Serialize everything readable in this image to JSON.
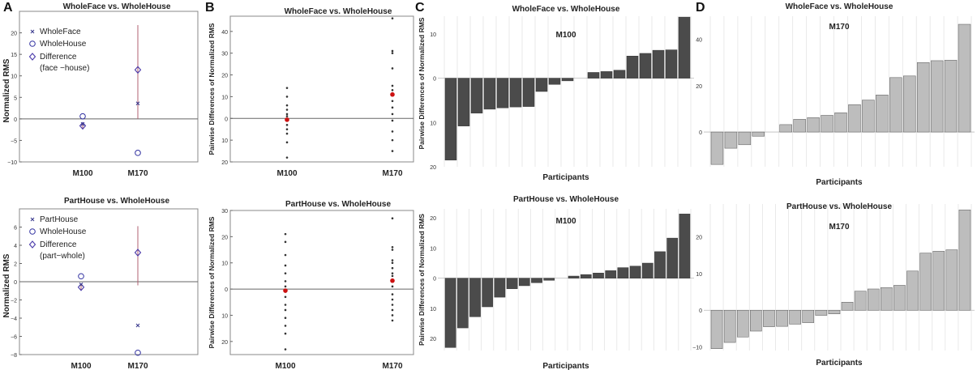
{
  "panel_letters": [
    "A",
    "B",
    "C",
    "D"
  ],
  "chart_data": [
    {
      "id": "A1",
      "type": "scatter",
      "panel": "A",
      "title": "WholeFace vs. WholeHouse",
      "ylabel": "Normalized RMS",
      "categories": [
        "M100",
        "M170"
      ],
      "ylim": [
        -10,
        25
      ],
      "yticks": [
        -10,
        -5,
        0,
        5,
        10,
        15,
        20
      ],
      "yticklabels": [
        "−10",
        "−5",
        "0",
        "5",
        "10",
        "15",
        "20"
      ],
      "legend": [
        "WholeFace",
        "WholeHouse",
        "Difference",
        "(face −house)"
      ],
      "series": [
        {
          "name": "WholeFace",
          "values": [
            -1.2,
            3.6
          ]
        },
        {
          "name": "WholeHouse",
          "values": [
            0.6,
            -7.9
          ]
        },
        {
          "name": "Difference",
          "values": [
            -1.6,
            11.4
          ],
          "err_low": [
            -2.4,
            0.0
          ],
          "err_high": [
            -0.8,
            21.8
          ]
        }
      ],
      "colors": {
        "face": "#3d3d8f",
        "house": "#3030a0",
        "diff": "#4a3aaa",
        "err": "#b06070"
      }
    },
    {
      "id": "A2",
      "type": "scatter",
      "panel": "A",
      "title": "PartHouse vs. WholeHouse",
      "ylabel": "Normalized RMS",
      "categories": [
        "M100",
        "M170"
      ],
      "ylim": [
        -8,
        8
      ],
      "yticks": [
        -8,
        -6,
        -4,
        -2,
        0,
        2,
        4,
        6
      ],
      "yticklabels": [
        "−8",
        "−6",
        "−4",
        "−2",
        "0",
        "2",
        "4",
        "6"
      ],
      "legend": [
        "PartHouse",
        "WholeHouse",
        "Difference",
        "(part−whole)"
      ],
      "series": [
        {
          "name": "PartHouse",
          "values": [
            -0.3,
            -4.8
          ]
        },
        {
          "name": "WholeHouse",
          "values": [
            0.6,
            -7.8
          ]
        },
        {
          "name": "Difference",
          "values": [
            -0.6,
            3.2
          ],
          "err_low": [
            -0.9,
            -0.4
          ],
          "err_high": [
            -0.3,
            6.1
          ]
        }
      ],
      "colors": {
        "face": "#3d3d8f",
        "house": "#3030a0",
        "diff": "#4a3aaa",
        "err": "#b06070"
      }
    },
    {
      "id": "B1",
      "type": "scatter",
      "panel": "B",
      "title": "WholeFace vs. WholeHouse",
      "ylabel": "Pairwise Differences of Normalized RMS",
      "categories": [
        "M100",
        "M170"
      ],
      "ylim": [
        -20,
        47
      ],
      "yticks": [
        -20,
        -10,
        0,
        10,
        20,
        30,
        40
      ],
      "yticklabels": [
        "20",
        "10",
        "0",
        "10",
        "20",
        "30",
        "40"
      ],
      "points": [
        [
          14,
          10,
          6,
          4,
          2,
          1,
          -1,
          -3,
          -5,
          -7,
          -11,
          -18
        ],
        [
          46,
          31,
          30,
          23,
          15,
          13,
          11,
          8,
          5,
          2,
          -1,
          -6,
          -10,
          -15
        ]
      ],
      "means": [
        -0.6,
        11.0
      ],
      "colors": {
        "point": "#333333",
        "mean": "#cc1111"
      }
    },
    {
      "id": "B2",
      "type": "scatter",
      "panel": "B",
      "title": "PartHouse vs. WholeHouse",
      "ylabel": "Pairwise Differences of Normalized RMS",
      "categories": [
        "M100",
        "M170"
      ],
      "ylim": [
        -25,
        30
      ],
      "yticks": [
        -20,
        -10,
        0,
        10,
        20,
        30
      ],
      "yticklabels": [
        "20",
        "10",
        "0",
        "10",
        "20",
        "30"
      ],
      "points": [
        [
          21,
          18,
          13,
          9,
          6,
          3,
          1,
          -1,
          -3,
          -6,
          -8,
          -11,
          -14,
          -17,
          -23
        ],
        [
          27,
          16,
          15,
          11,
          10,
          8,
          6,
          5,
          3,
          1,
          -2,
          -4,
          -6,
          -8,
          -10,
          -12
        ]
      ],
      "means": [
        -0.6,
        3.2
      ],
      "colors": {
        "point": "#333333",
        "mean": "#cc1111"
      }
    },
    {
      "id": "C1",
      "type": "bar",
      "panel": "C",
      "title": "WholeFace vs. WholeHouse",
      "subtitle": "M100",
      "ylabel": "Pairwise Differences of Normalized RMS",
      "xlabel": "Participants",
      "ylim": [
        -20,
        14
      ],
      "yticks": [
        -20,
        -10,
        0,
        10
      ],
      "yticklabels": [
        "20",
        "10",
        "0",
        "10"
      ],
      "values": [
        -18.5,
        -10.8,
        -7.9,
        -7.0,
        -6.7,
        -6.5,
        -6.4,
        -3.0,
        -1.4,
        -0.6,
        0.0,
        1.3,
        1.5,
        1.8,
        5.0,
        5.6,
        6.3,
        6.4,
        13.8
      ],
      "colors": {
        "bar": "#4b4b4b",
        "stroke": "#333333"
      }
    },
    {
      "id": "C2",
      "type": "bar",
      "panel": "C",
      "title": "PartHouse vs. WholeHouse",
      "subtitle": "M100",
      "ylabel": "Pairwise Differences of Normalized RMS",
      "xlabel": "Participants",
      "ylim": [
        -24,
        23
      ],
      "yticks": [
        -20,
        -10,
        0,
        10,
        20
      ],
      "yticklabels": [
        "20",
        "10",
        "0",
        "10",
        "20"
      ],
      "values": [
        -23.0,
        -16.5,
        -12.8,
        -9.5,
        -6.3,
        -3.5,
        -2.5,
        -1.5,
        -0.7,
        0.0,
        0.7,
        1.2,
        1.7,
        2.5,
        3.5,
        4.0,
        5.0,
        8.8,
        13.3,
        21.3
      ],
      "colors": {
        "bar": "#4b4b4b",
        "stroke": "#333333"
      }
    },
    {
      "id": "D1",
      "type": "bar",
      "panel": "D",
      "title": "WholeFace vs. WholeHouse",
      "subtitle": "M170",
      "xlabel": "Participants",
      "ylim": [
        -15,
        50
      ],
      "yticks": [
        0,
        20,
        40
      ],
      "yticklabels": [
        "0",
        "20",
        "40"
      ],
      "values": [
        -14.0,
        -7.0,
        -5.5,
        -1.8,
        0.0,
        3.2,
        5.5,
        6.2,
        7.2,
        8.3,
        11.8,
        13.8,
        16.0,
        23.5,
        24.2,
        30.0,
        30.8,
        31.0,
        46.5
      ],
      "colors": {
        "bar": "#bdbdbd",
        "stroke": "#555555"
      }
    },
    {
      "id": "D2",
      "type": "bar",
      "panel": "D",
      "title": "PartHouse vs. WholeHouse",
      "subtitle": "M170",
      "xlabel": "Participants",
      "ylim": [
        -11,
        29
      ],
      "yticks": [
        -10,
        0,
        10,
        20
      ],
      "yticklabels": [
        "−10",
        "0",
        "10",
        "20"
      ],
      "values": [
        -10.5,
        -8.8,
        -7.3,
        -5.7,
        -4.5,
        -4.4,
        -3.8,
        -3.4,
        -1.4,
        -1.0,
        2.2,
        5.2,
        5.8,
        6.2,
        6.8,
        10.7,
        15.6,
        16.1,
        16.5,
        27.4
      ],
      "colors": {
        "bar": "#bdbdbd",
        "stroke": "#555555"
      }
    }
  ]
}
